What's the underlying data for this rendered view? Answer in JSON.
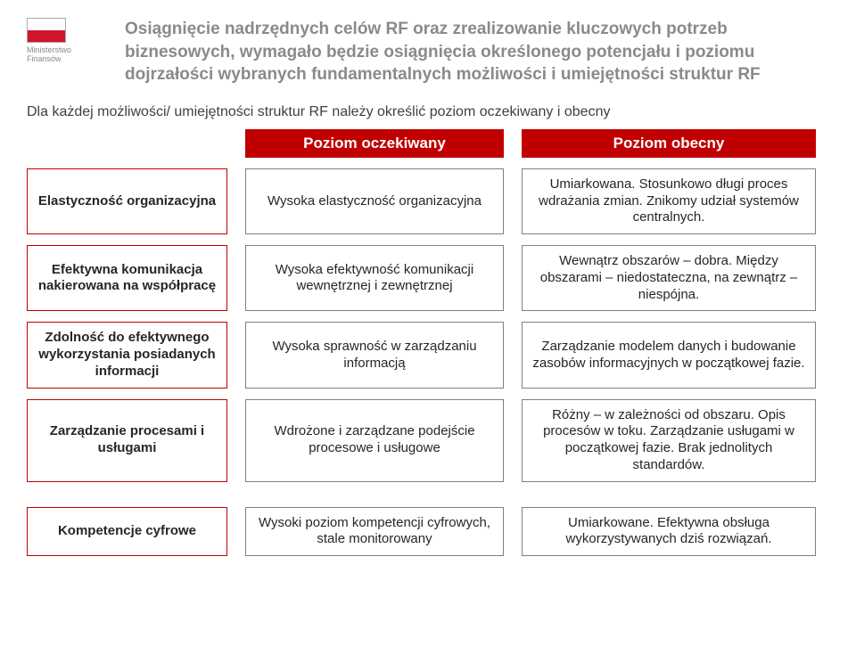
{
  "logo": {
    "line1": "Ministerstwo",
    "line2": "Finansów"
  },
  "headline": "Osiągnięcie nadrzędnych celów RF oraz zrealizowanie kluczowych potrzeb biznesowych, wymagało będzie osiągnięcia określonego potencjału i poziomu dojrzałości wybranych fundamentalnych możliwości i umiejętności struktur RF",
  "subheading": "Dla każdej możliwości/ umiejętności struktur RF należy określić poziom oczekiwany i obecny",
  "headers": {
    "expected": "Poziom oczekiwany",
    "current": "Poziom obecny"
  },
  "rows": [
    {
      "category": "Elastyczność organizacyjna",
      "expected": "Wysoka elastyczność organizacyjna",
      "current": "Umiarkowana. Stosunkowo długi proces wdrażania zmian. Znikomy udział systemów centralnych."
    },
    {
      "category": "Efektywna komunikacja nakierowana na współpracę",
      "expected": "Wysoka efektywność komunikacji wewnętrznej i zewnętrznej",
      "current": "Wewnątrz obszarów – dobra. Między obszarami – niedostateczna, na zewnątrz – niespójna."
    },
    {
      "category": "Zdolność do efektywnego wykorzystania posiadanych informacji",
      "expected": "Wysoka sprawność w zarządzaniu informacją",
      "current": "Zarządzanie modelem danych i budowanie zasobów informacyjnych w początkowej fazie."
    },
    {
      "category": "Zarządzanie procesami i usługami",
      "expected": "Wdrożone i zarządzane podejście procesowe i usługowe",
      "current": "Różny – w zależności od obszaru. Opis procesów w toku. Zarządzanie usługami w początkowej fazie. Brak jednolitych standardów."
    },
    {
      "category": "Kompetencje cyfrowe",
      "expected": "Wysoki poziom kompetencji cyfrowych, stale monitorowany",
      "current": "Umiarkowane. Efektywna obsługa wykorzystywanych dziś rozwiązań."
    }
  ],
  "colors": {
    "accent_red": "#c00000",
    "logo_red": "#d1152c",
    "grey_border": "#808080",
    "headline_grey": "#8a8a8a",
    "text": "#404040",
    "bg": "#ffffff"
  }
}
